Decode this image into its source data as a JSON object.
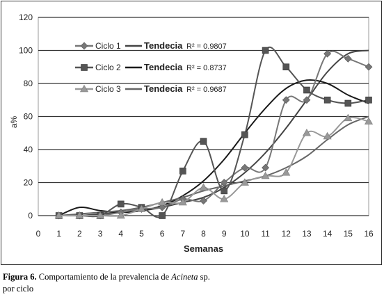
{
  "chart_data": {
    "type": "line",
    "title": "",
    "xlabel": "Semanas",
    "ylabel": "a%",
    "xlim": [
      0,
      16
    ],
    "ylim": [
      0,
      120
    ],
    "x_ticks": [
      "0",
      "1",
      "2",
      "3",
      "4",
      "5",
      "6",
      "7",
      "8",
      "9",
      "10",
      "11",
      "12",
      "13",
      "14",
      "15",
      "16"
    ],
    "y_ticks": [
      "0",
      "20",
      "40",
      "60",
      "80",
      "100",
      "120"
    ],
    "grid": "horizontal",
    "legend_position": "top-left",
    "x": [
      1,
      2,
      3,
      4,
      5,
      6,
      7,
      8,
      9,
      10,
      11,
      12,
      13,
      14,
      15,
      16
    ],
    "series": [
      {
        "name": "Ciclo 1",
        "marker": "diamond",
        "color": "#777777",
        "values": [
          0,
          0,
          0,
          2,
          4,
          5,
          10,
          9,
          20,
          29,
          29,
          70,
          70,
          98,
          95,
          90
        ],
        "trend_label": "Tendecia",
        "r2_label": "R² = 0.9807",
        "trend_values": [
          0,
          0,
          1,
          2,
          3,
          5,
          8,
          11,
          17,
          26,
          38,
          53,
          70,
          87,
          98,
          100
        ]
      },
      {
        "name": "Ciclo 2",
        "marker": "square",
        "color": "#555555",
        "values": [
          0,
          0,
          0,
          7,
          5,
          0,
          27,
          45,
          15,
          49,
          100,
          90,
          76,
          70,
          68,
          70
        ],
        "trend_label": "Tendecia",
        "r2_label": "R² = 0.8737",
        "trend_values": [
          0,
          5,
          3,
          2,
          3,
          6,
          12,
          21,
          34,
          50,
          65,
          77,
          82,
          80,
          73,
          68
        ]
      },
      {
        "name": "Ciclo 3",
        "marker": "triangle",
        "color": "#999999",
        "values": [
          0,
          0,
          0,
          0,
          4,
          8,
          8,
          17,
          10,
          20,
          24,
          26,
          50,
          48,
          59,
          57
        ],
        "trend_label": "Tendecia",
        "r2_label": "R² = 0.9687",
        "trend_values": [
          0,
          1,
          2,
          3,
          5,
          8,
          11,
          15,
          18,
          21,
          24,
          29,
          36,
          46,
          55,
          60
        ]
      }
    ]
  },
  "caption": {
    "label": "Figura 6.",
    "text_before": " Comportamiento de la prevalencia de ",
    "species": "Acineta",
    "text_after": " sp.",
    "line2": "por ciclo"
  }
}
